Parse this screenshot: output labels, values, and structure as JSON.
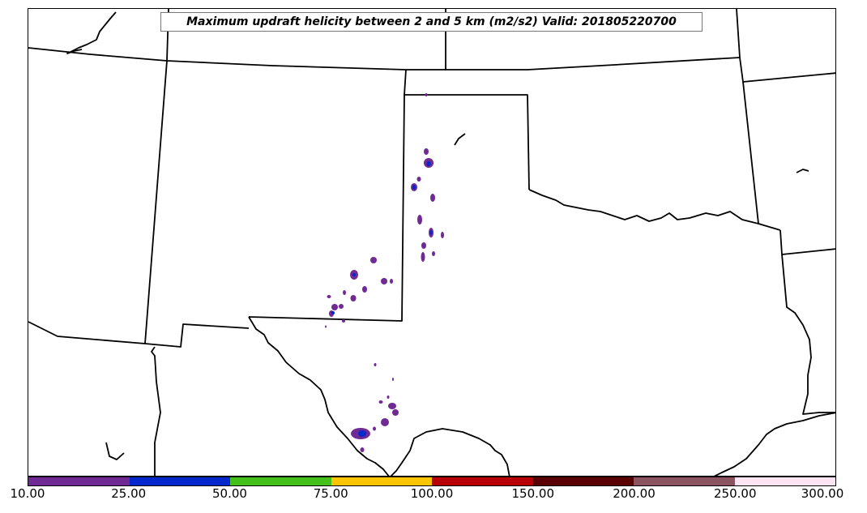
{
  "map": {
    "title": "Maximum updraft helicity between 2 and 5 km (m2/s2) Valid: 201805220700",
    "region": "Southern Plains (Texas, Oklahoma, New Mexico, Kansas)",
    "variable": "Maximum updraft helicity between 2 and 5 km",
    "units": "m2/s2",
    "valid_time": "201805220700"
  },
  "colorbar": {
    "levels": [
      "10.00",
      "25.00",
      "50.00",
      "75.00",
      "100.00",
      "150.00",
      "200.00",
      "250.00",
      "300.00"
    ],
    "colors": [
      "#6f2a94",
      "#0028cc",
      "#44c01a",
      "#ffc400",
      "#b80000",
      "#5a0000",
      "#8a5560",
      "#ffe4f4"
    ]
  },
  "colors": {
    "border": "#000000",
    "land": "#ffffff",
    "helicity_low": "#6f2a94",
    "helicity_mid": "#0028cc"
  }
}
